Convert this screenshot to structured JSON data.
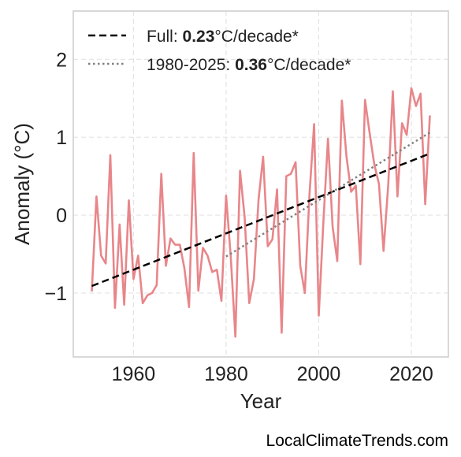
{
  "watermark": "LocalClimateTrends.com",
  "chart_data": {
    "type": "line",
    "xlabel": "Year",
    "ylabel": "Anomaly (°C)",
    "xlim": [
      1947,
      2028
    ],
    "ylim": [
      -1.82,
      2.62
    ],
    "xticks": [
      1960,
      1980,
      2000,
      2020
    ],
    "yticks": [
      -1,
      0,
      1,
      2
    ],
    "ytick_labels": [
      "−1",
      "0",
      "1",
      "2"
    ],
    "grid": true,
    "legend_position": "top-left",
    "series": [
      {
        "kind": "anomaly",
        "color": "#e8868a",
        "x": [
          1951,
          1952,
          1953,
          1954,
          1955,
          1956,
          1957,
          1958,
          1959,
          1960,
          1961,
          1962,
          1963,
          1964,
          1965,
          1966,
          1967,
          1968,
          1969,
          1970,
          1971,
          1972,
          1973,
          1974,
          1975,
          1976,
          1977,
          1978,
          1979,
          1980,
          1981,
          1982,
          1983,
          1984,
          1985,
          1986,
          1987,
          1988,
          1989,
          1990,
          1991,
          1992,
          1993,
          1994,
          1995,
          1996,
          1997,
          1998,
          1999,
          2000,
          2001,
          2002,
          2003,
          2004,
          2005,
          2006,
          2007,
          2008,
          2009,
          2010,
          2011,
          2012,
          2013,
          2014,
          2015,
          2016,
          2017,
          2018,
          2019,
          2020,
          2021,
          2022,
          2023,
          2024
        ],
        "y": [
          -0.98,
          0.24,
          -0.52,
          -0.62,
          0.77,
          -1.19,
          -0.12,
          -1.15,
          0.19,
          -0.82,
          -0.52,
          -1.13,
          -1.03,
          -1.0,
          -0.9,
          0.53,
          -0.65,
          -0.3,
          -0.38,
          -0.38,
          -0.68,
          -1.18,
          0.8,
          -0.97,
          -0.42,
          -0.52,
          -0.73,
          -0.7,
          -1.1,
          0.25,
          -0.53,
          -1.56,
          0.57,
          -0.02,
          -1.13,
          -0.82,
          0.2,
          0.75,
          -0.4,
          -0.31,
          0.33,
          -1.51,
          0.5,
          0.53,
          0.68,
          -0.65,
          -1.0,
          0.26,
          1.17,
          -1.29,
          -0.1,
          0.98,
          -0.15,
          -0.59,
          1.47,
          0.75,
          0.3,
          0.38,
          -0.63,
          1.48,
          1.05,
          0.65,
          0.4,
          -0.46,
          0.38,
          1.59,
          0.24,
          1.18,
          1.03,
          1.63,
          1.4,
          1.56,
          0.14,
          1.28
        ]
      },
      {
        "kind": "full-trend",
        "color": "#000000",
        "dash": "dashed",
        "x": [
          1951,
          2024
        ],
        "y": [
          -0.91,
          0.79
        ]
      },
      {
        "kind": "recent-trend",
        "color": "#808080",
        "dash": "dotted",
        "x": [
          1980,
          2024
        ],
        "y": [
          -0.53,
          1.06
        ]
      }
    ],
    "legend": [
      {
        "prefix": "Full: ",
        "value": "0.23",
        "suffix": "°C/decade*",
        "color": "#000000",
        "dash": "dashed"
      },
      {
        "prefix": "1980-2025: ",
        "value": "0.36",
        "suffix": "°C/decade*",
        "color": "#808080",
        "dash": "dotted"
      }
    ]
  }
}
